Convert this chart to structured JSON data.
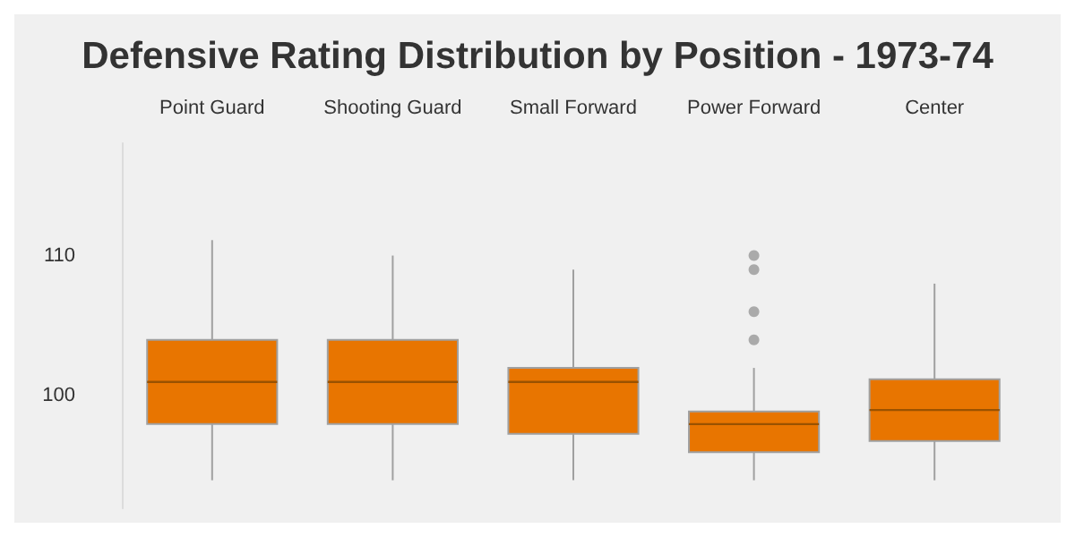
{
  "chart_data": {
    "type": "box",
    "title": "Defensive Rating Distribution by Position - 1973-74",
    "categories": [
      "Point Guard",
      "Shooting Guard",
      "Small Forward",
      "Power Forward",
      "Center"
    ],
    "color": "#e87500",
    "boxes": [
      {
        "low": 94,
        "q1": 98,
        "median": 101,
        "q3": 104,
        "high": 111.1
      },
      {
        "low": 94,
        "q1": 98,
        "median": 101,
        "q3": 104,
        "high": 110
      },
      {
        "low": 94,
        "q1": 97.3,
        "median": 101,
        "q3": 102,
        "high": 109
      },
      {
        "low": 94,
        "q1": 96,
        "median": 98,
        "q3": 98.9,
        "high": 102,
        "outliers": [
          110,
          109,
          106,
          104
        ]
      },
      {
        "low": 94,
        "q1": 96.8,
        "median": 99,
        "q3": 101.2,
        "high": 108
      }
    ],
    "ylim": [
      92,
      118
    ],
    "yticks": [
      100,
      110
    ],
    "grid": false
  }
}
